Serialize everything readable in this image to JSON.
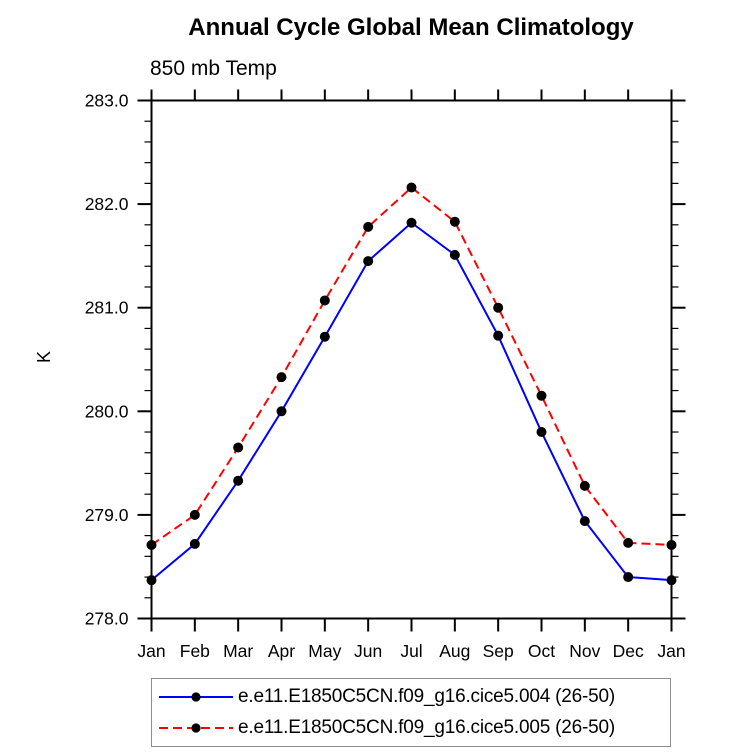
{
  "page": {
    "background": "#ffffff"
  },
  "chart_data": {
    "type": "line",
    "title": "Annual Cycle Global Mean Climatology",
    "subtitle": "850 mb Temp",
    "ylabel": "K",
    "x_categories": [
      "Jan",
      "Feb",
      "Mar",
      "Apr",
      "May",
      "Jun",
      "Jul",
      "Aug",
      "Sep",
      "Oct",
      "Nov",
      "Dec",
      "Jan"
    ],
    "ylim": [
      278.0,
      283.0
    ],
    "y_major_tick_labels": [
      "278.0",
      "279.0",
      "280.0",
      "281.0",
      "282.0",
      "283.0"
    ],
    "y_minor_step": 0.2,
    "grid": false,
    "legend_position": "bottom-box",
    "axis_color": "#000000",
    "marker_color": "#000000",
    "legend_border_color": "#8e8e8e",
    "series": [
      {
        "name": "e.e11.E1850C5CN.f09_g16.cice5.004 (26-50)",
        "color": "#0000ff",
        "line_style": "solid",
        "marker": "filled-circle",
        "values": [
          278.37,
          278.72,
          279.33,
          280.0,
          280.72,
          281.45,
          281.82,
          281.51,
          280.73,
          279.8,
          278.94,
          278.4,
          278.37
        ]
      },
      {
        "name": "e.e11.E1850C5CN.f09_g16.cice5.005 (26-50)",
        "color": "#ff0000",
        "line_style": "dashed",
        "marker": "filled-circle",
        "values": [
          278.71,
          279.0,
          279.65,
          280.33,
          281.07,
          281.78,
          282.16,
          281.83,
          281.0,
          280.15,
          279.28,
          278.73,
          278.71
        ]
      }
    ]
  }
}
